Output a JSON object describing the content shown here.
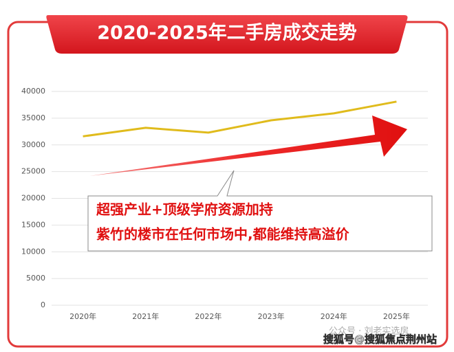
{
  "chart_data": {
    "type": "line",
    "title": "2020-2025年二手房成交走势",
    "categories": [
      "2020年",
      "2021年",
      "2022年",
      "2023年",
      "2024年",
      "2025年"
    ],
    "values": [
      31600,
      33200,
      32300,
      34600,
      35900,
      38100
    ],
    "color": "#e0bb1c",
    "ylim": [
      0,
      40000
    ],
    "yticks": [
      0,
      5000,
      10000,
      15000,
      20000,
      25000,
      30000,
      35000,
      40000
    ],
    "grid": true,
    "annotations": [
      "超强产业+顶级学府资源加持",
      "紫竹的楼市在任何市场中,都能维持高溢价"
    ],
    "watermarks": [
      "公众号 · 刘老实选房",
      "搜狐号@搜狐焦点荆州站"
    ]
  }
}
